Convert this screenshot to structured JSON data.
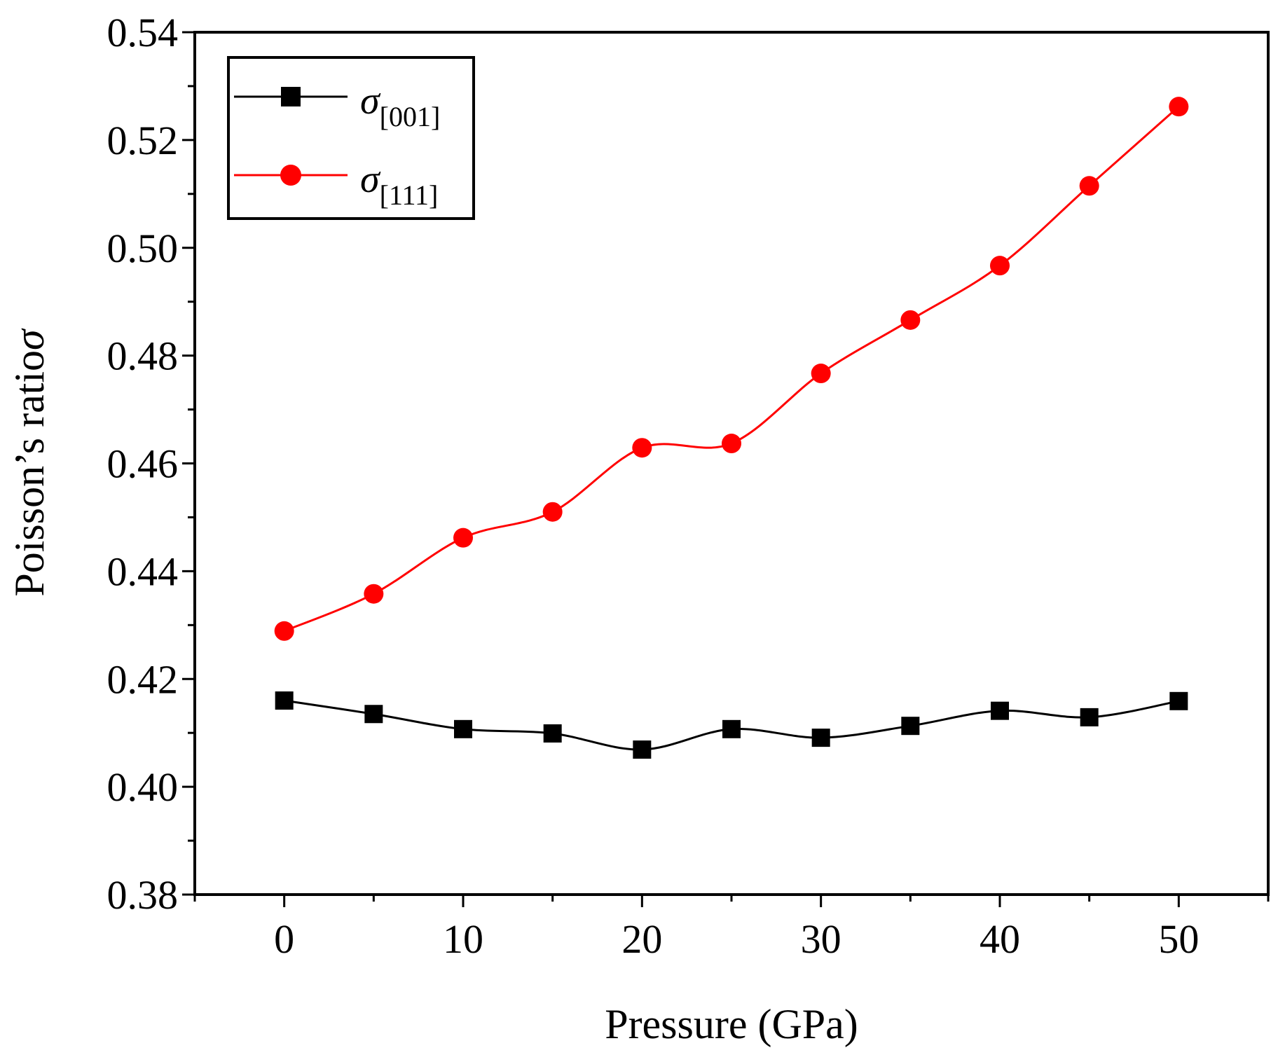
{
  "chart_data": {
    "type": "line",
    "title": "",
    "xlabel": "Pressure (GPa)",
    "ylabel": "Poisson’s ratio",
    "ylabel_symbol": "σ",
    "xlim": [
      -5,
      55
    ],
    "ylim": [
      0.38,
      0.54
    ],
    "x_ticks": [
      "0",
      "10",
      "20",
      "30",
      "40",
      "50"
    ],
    "y_ticks": [
      "0.38",
      "0.40",
      "0.42",
      "0.44",
      "0.46",
      "0.48",
      "0.50",
      "0.52",
      "0.54"
    ],
    "x": [
      0,
      5,
      10,
      15,
      20,
      25,
      30,
      35,
      40,
      45,
      50
    ],
    "series": [
      {
        "name": "σ[001]",
        "symbol": "σ",
        "subscript": "[001]",
        "color": "#000000",
        "marker": "square",
        "values": [
          0.416,
          0.4135,
          0.4107,
          0.4099,
          0.4069,
          0.4107,
          0.4091,
          0.4113,
          0.4141,
          0.4129,
          0.4159
        ]
      },
      {
        "name": "σ[111]",
        "symbol": "σ",
        "subscript": "[111]",
        "color": "#ff0000",
        "marker": "circle",
        "values": [
          0.4289,
          0.4358,
          0.4462,
          0.451,
          0.4629,
          0.4637,
          0.4767,
          0.4866,
          0.4967,
          0.5115,
          0.5262
        ]
      }
    ],
    "legend_position": "top-left",
    "grid": false
  }
}
